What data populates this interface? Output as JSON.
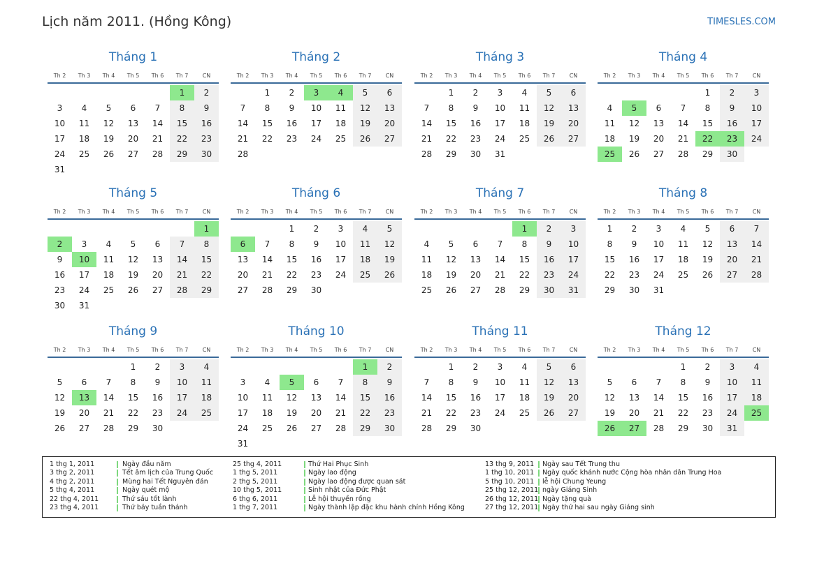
{
  "header": {
    "title": "Lịch năm 2011. (Hồng Kông)",
    "site": "TIMESLES.COM"
  },
  "weekdays": [
    "Th 2",
    "Th 3",
    "Th 4",
    "Th 5",
    "Th 6",
    "Th 7",
    "CN"
  ],
  "months": [
    {
      "name": "Tháng 1",
      "start": 5,
      "days": 31,
      "holidays": [
        1
      ]
    },
    {
      "name": "Tháng 2",
      "start": 1,
      "days": 28,
      "holidays": [
        3,
        4
      ]
    },
    {
      "name": "Tháng 3",
      "start": 1,
      "days": 31,
      "holidays": []
    },
    {
      "name": "Tháng 4",
      "start": 4,
      "days": 30,
      "holidays": [
        5,
        22,
        23,
        25
      ]
    },
    {
      "name": "Tháng 5",
      "start": 6,
      "days": 31,
      "holidays": [
        1,
        2,
        10
      ]
    },
    {
      "name": "Tháng 6",
      "start": 2,
      "days": 30,
      "holidays": [
        6
      ]
    },
    {
      "name": "Tháng 7",
      "start": 4,
      "days": 31,
      "holidays": [
        1
      ]
    },
    {
      "name": "Tháng 8",
      "start": 0,
      "days": 31,
      "holidays": []
    },
    {
      "name": "Tháng 9",
      "start": 3,
      "days": 30,
      "holidays": [
        13
      ]
    },
    {
      "name": "Tháng 10",
      "start": 5,
      "days": 31,
      "holidays": [
        1,
        5
      ]
    },
    {
      "name": "Tháng 11",
      "start": 1,
      "days": 30,
      "holidays": []
    },
    {
      "name": "Tháng 12",
      "start": 3,
      "days": 31,
      "holidays": [
        25,
        26,
        27
      ]
    }
  ],
  "legend": [
    [
      {
        "date": "1 thg 1, 2011",
        "name": "Ngày đầu năm"
      },
      {
        "date": "3 thg 2, 2011",
        "name": "Tết âm lịch của Trung Quốc"
      },
      {
        "date": "4 thg 2, 2011",
        "name": "Mùng hai Tết Nguyên đán"
      },
      {
        "date": "5 thg 4, 2011",
        "name": "Ngày quét mộ"
      },
      {
        "date": "22 thg 4, 2011",
        "name": "Thứ sáu tốt lành"
      },
      {
        "date": "23 thg 4, 2011",
        "name": "Thứ bảy tuần thánh"
      }
    ],
    [
      {
        "date": "25 thg 4, 2011",
        "name": "Thứ Hai Phục Sinh"
      },
      {
        "date": "1 thg 5, 2011",
        "name": "Ngày lao động"
      },
      {
        "date": "2 thg 5, 2011",
        "name": "Ngày lao động được quan sát"
      },
      {
        "date": "10 thg 5, 2011",
        "name": "Sinh nhật của Đức Phật"
      },
      {
        "date": "6 thg 6, 2011",
        "name": "Lễ hội thuyền rồng"
      },
      {
        "date": "1 thg 7, 2011",
        "name": "Ngày thành lập đặc khu hành chính Hồng Kông"
      }
    ],
    [
      {
        "date": "13 thg 9, 2011",
        "name": "Ngày sau Tết Trung thu"
      },
      {
        "date": "1 thg 10, 2011",
        "name": "Ngày quốc khánh nước Cộng hòa nhân dân Trung Hoa"
      },
      {
        "date": "5 thg 10, 2011",
        "name": "lễ hội Chung Yeung"
      },
      {
        "date": "25 thg 12, 2011",
        "name": "ngày Giáng Sinh"
      },
      {
        "date": "26 thg 12, 2011",
        "name": "Ngày tặng quà"
      },
      {
        "date": "27 thg 12, 2011",
        "name": "Ngày thứ hai sau ngày Giáng sinh"
      }
    ]
  ]
}
